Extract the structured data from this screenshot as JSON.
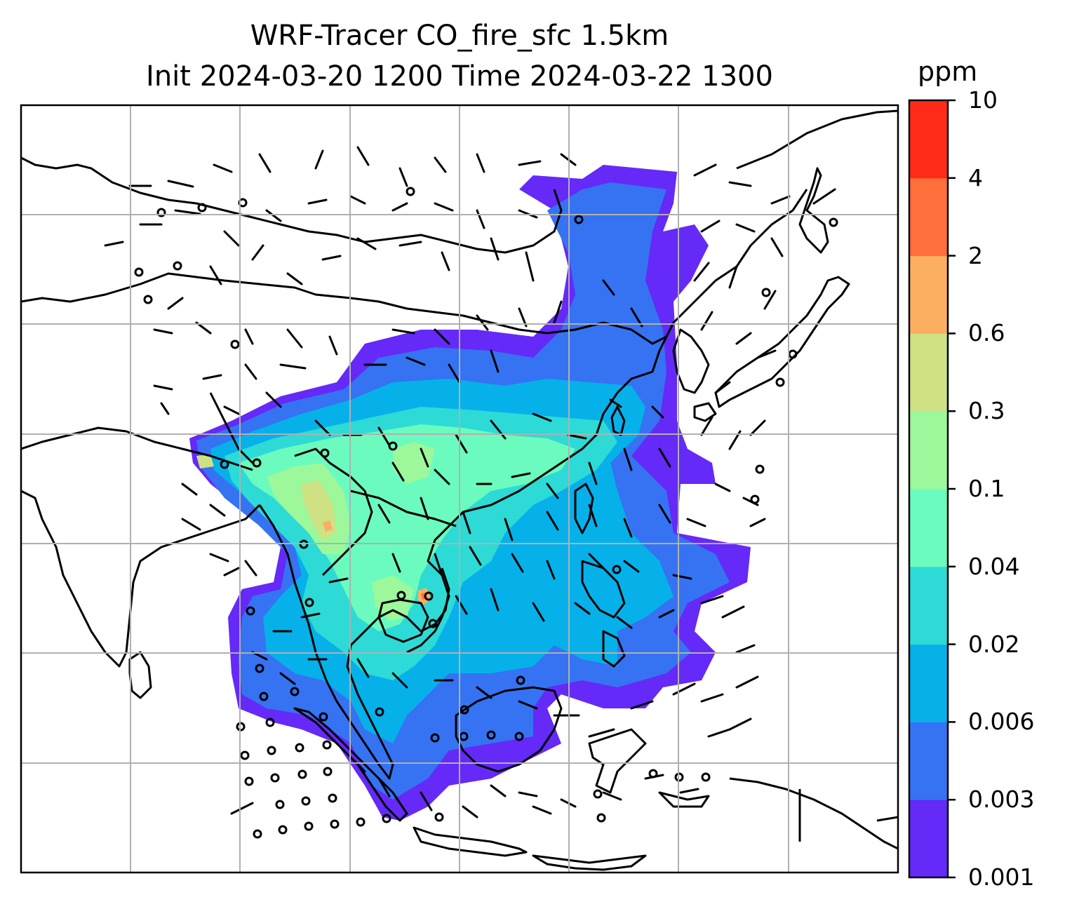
{
  "title": {
    "line1": "WRF-Tracer CO_fire_sfc 1.5km",
    "line2": "Init 2024-03-20 1200 Time 2024-03-22 1300"
  },
  "colorbar": {
    "unit": "ppm",
    "levels": [
      "0.001",
      "0.003",
      "0.006",
      "0.02",
      "0.04",
      "0.1",
      "0.3",
      "0.6",
      "2",
      "4",
      "10"
    ],
    "colors": [
      "#6529f8",
      "#3573f2",
      "#06b1ea",
      "#2ddad6",
      "#6bfbbe",
      "#9cf89b",
      "#cee283",
      "#fcae61",
      "#ff6f3b",
      "#ff2b18"
    ]
  },
  "map": {
    "field": "CO_fire_sfc",
    "overlay": "wind barbs",
    "gridlines": true
  }
}
